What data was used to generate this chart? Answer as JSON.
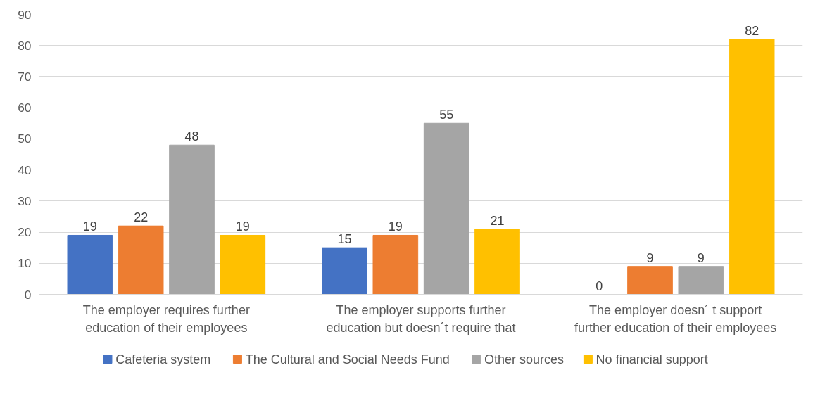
{
  "chart_data": {
    "type": "bar",
    "categories": [
      "The employer requires further education of their employees",
      "The employer supports further education but doesn´t require that",
      "The employer doesn´ t support further education of their employees"
    ],
    "series": [
      {
        "name": "Cafeteria system",
        "color": "#4472c4",
        "values": [
          19,
          15,
          0
        ]
      },
      {
        "name": "The Cultural and Social Needs Fund",
        "color": "#ed7d31",
        "values": [
          22,
          19,
          9
        ]
      },
      {
        "name": "Other sources",
        "color": "#a5a5a5",
        "values": [
          48,
          55,
          9
        ]
      },
      {
        "name": "No financial support",
        "color": "#ffc000",
        "values": [
          19,
          21,
          82
        ]
      }
    ],
    "ylim": [
      0,
      90
    ],
    "yticks": [
      0,
      10,
      20,
      30,
      40,
      50,
      60,
      70,
      80,
      90
    ],
    "grid": "y",
    "legend": "bottom",
    "data_labels": true
  }
}
